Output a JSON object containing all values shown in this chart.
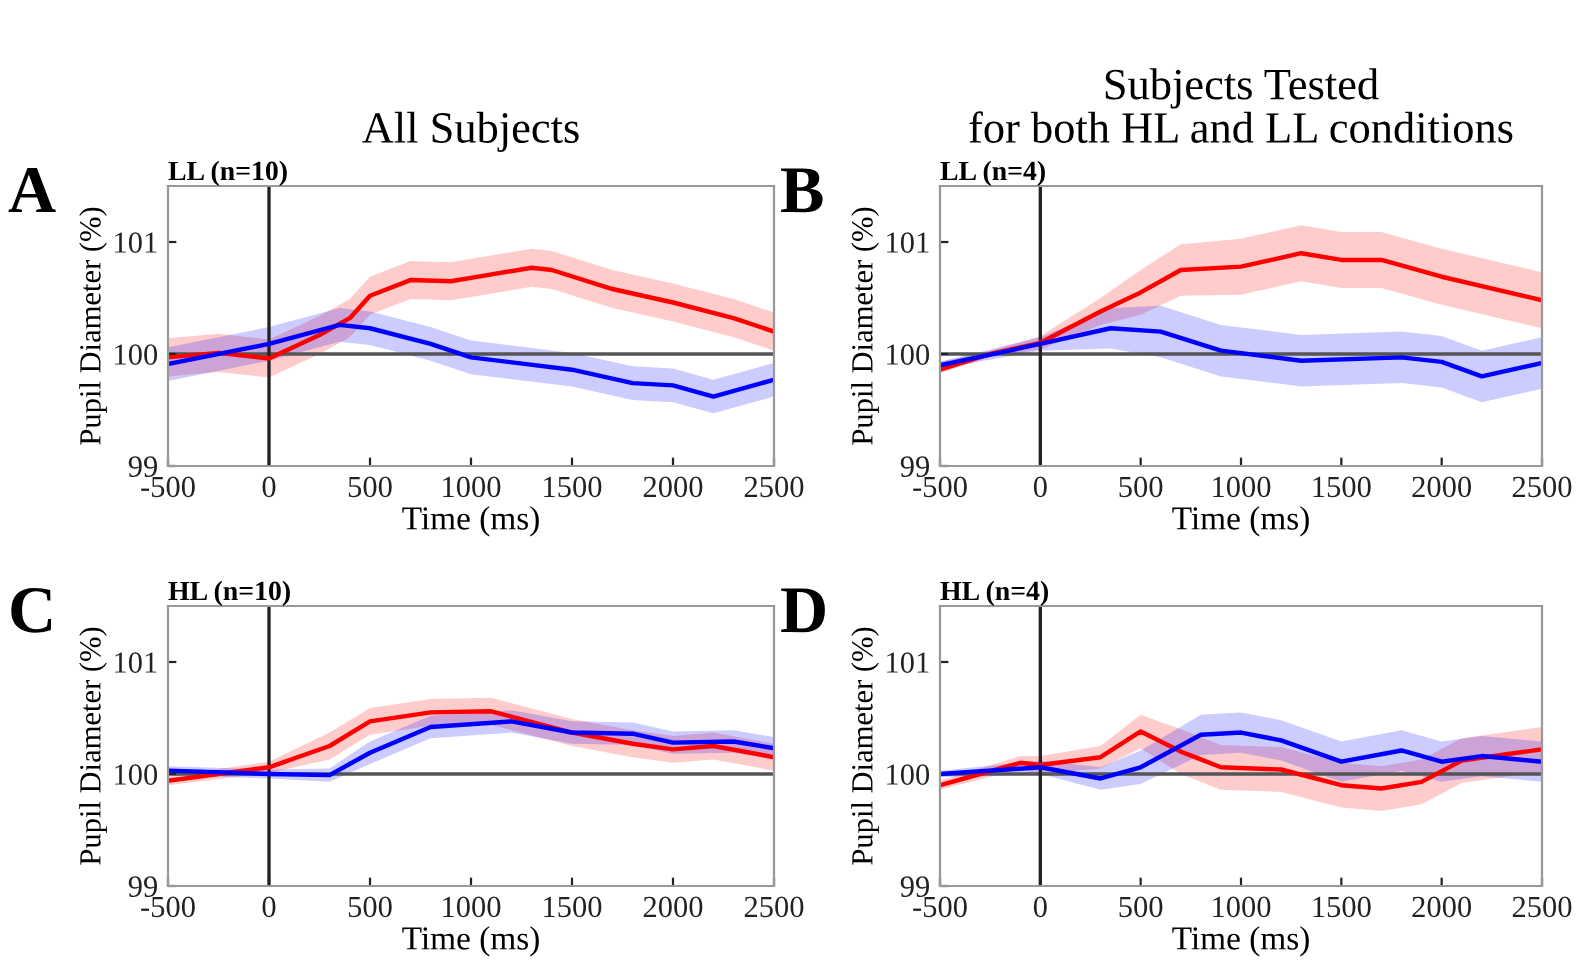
{
  "chart_data": [
    {
      "type": "line",
      "title": "LL (n=10)",
      "subtitle": "All Subjects",
      "annotations": [
        "A"
      ],
      "xlabel": "Time (ms)",
      "ylabel": "Pupil Diameter (%)",
      "xlim": [
        -500,
        2500
      ],
      "ylim": [
        99,
        101.5
      ],
      "xticks": [
        -500,
        0,
        500,
        1000,
        1500,
        2000,
        2500
      ],
      "yticks": [
        99,
        100,
        101
      ],
      "grid": false,
      "line_style": "solid",
      "ref_lines": [
        {
          "axis": "y",
          "value": 100,
          "color": "#555555"
        },
        {
          "axis": "x",
          "value": 0,
          "color": "#222222"
        }
      ],
      "series": [
        {
          "color": "#ff0000",
          "x": [
            -500,
            -250,
            0,
            250,
            400,
            500,
            700,
            900,
            1000,
            1300,
            1400,
            1700,
            2000,
            2300,
            2500
          ],
          "values": [
            99.97,
            100.01,
            99.96,
            100.17,
            100.32,
            100.52,
            100.66,
            100.65,
            100.68,
            100.77,
            100.75,
            100.58,
            100.46,
            100.32,
            100.2
          ],
          "lower": [
            99.8,
            99.84,
            99.79,
            100.0,
            100.15,
            100.35,
            100.49,
            100.48,
            100.51,
            100.6,
            100.58,
            100.41,
            100.29,
            100.15,
            100.03
          ],
          "upper": [
            100.14,
            100.18,
            100.13,
            100.34,
            100.49,
            100.69,
            100.83,
            100.82,
            100.85,
            100.94,
            100.92,
            100.75,
            100.63,
            100.49,
            100.37
          ]
        },
        {
          "color": "#0000ff",
          "x": [
            -500,
            0,
            350,
            500,
            800,
            1000,
            1500,
            1800,
            2000,
            2200,
            2500
          ],
          "values": [
            99.91,
            100.09,
            100.26,
            100.23,
            100.09,
            99.97,
            99.86,
            99.74,
            99.72,
            99.62,
            99.77
          ],
          "lower": [
            99.76,
            99.94,
            100.11,
            100.08,
            99.94,
            99.82,
            99.71,
            99.59,
            99.57,
            99.47,
            99.62
          ],
          "upper": [
            100.06,
            100.24,
            100.41,
            100.38,
            100.24,
            100.12,
            100.01,
            99.89,
            99.87,
            99.77,
            99.92
          ]
        }
      ]
    },
    {
      "type": "line",
      "title": "LL (n=4)",
      "subtitle": "Subjects Tested\nfor both HL and LL conditions",
      "annotations": [
        "B"
      ],
      "xlabel": "Time (ms)",
      "ylabel": "Pupil Diameter (%)",
      "xlim": [
        -500,
        2500
      ],
      "ylim": [
        99,
        101.5
      ],
      "xticks": [
        -500,
        0,
        500,
        1000,
        1500,
        2000,
        2500
      ],
      "yticks": [
        99,
        100,
        101
      ],
      "grid": false,
      "line_style": "solid",
      "ref_lines": [
        {
          "axis": "y",
          "value": 100,
          "color": "#555555"
        },
        {
          "axis": "x",
          "value": 0,
          "color": "#222222"
        }
      ],
      "series": [
        {
          "color": "#ff0000",
          "x": [
            -500,
            -250,
            0,
            300,
            500,
            700,
            1000,
            1300,
            1500,
            1700,
            2000,
            2500
          ],
          "values": [
            99.86,
            100.0,
            100.1,
            100.38,
            100.55,
            100.75,
            100.78,
            100.9,
            100.84,
            100.84,
            100.69,
            100.48
          ],
          "lower": [
            99.83,
            99.97,
            100.04,
            100.26,
            100.35,
            100.52,
            100.53,
            100.65,
            100.59,
            100.59,
            100.44,
            100.23
          ],
          "upper": [
            99.93,
            100.03,
            100.16,
            100.5,
            100.75,
            100.98,
            101.03,
            101.15,
            101.09,
            101.09,
            100.94,
            100.73
          ]
        },
        {
          "color": "#0000ff",
          "x": [
            -500,
            0,
            350,
            600,
            900,
            1300,
            1800,
            2000,
            2200,
            2500
          ],
          "values": [
            99.9,
            100.09,
            100.23,
            100.2,
            100.03,
            99.94,
            99.97,
            99.93,
            99.8,
            99.92
          ],
          "lower": [
            99.87,
            100.03,
            100.05,
            99.97,
            99.8,
            99.71,
            99.74,
            99.7,
            99.57,
            99.69
          ],
          "upper": [
            99.93,
            100.15,
            100.41,
            100.43,
            100.26,
            100.17,
            100.2,
            100.16,
            100.03,
            100.15
          ]
        }
      ]
    },
    {
      "type": "line",
      "title": "HL (n=10)",
      "annotations": [
        "C"
      ],
      "xlabel": "Time (ms)",
      "ylabel": "Pupil Diameter (%)",
      "xlim": [
        -500,
        2500
      ],
      "ylim": [
        99,
        101.5
      ],
      "xticks": [
        -500,
        0,
        500,
        1000,
        1500,
        2000,
        2500
      ],
      "yticks": [
        99,
        100,
        101
      ],
      "grid": false,
      "line_style": "solid",
      "ref_lines": [
        {
          "axis": "y",
          "value": 100,
          "color": "#555555"
        },
        {
          "axis": "x",
          "value": 0,
          "color": "#222222"
        }
      ],
      "series": [
        {
          "color": "#ff0000",
          "x": [
            -500,
            0,
            300,
            500,
            800,
            1100,
            1500,
            1800,
            2000,
            2200,
            2500
          ],
          "values": [
            99.94,
            100.06,
            100.25,
            100.47,
            100.55,
            100.56,
            100.37,
            100.27,
            100.22,
            100.25,
            100.15
          ],
          "lower": [
            99.9,
            100.01,
            100.13,
            100.35,
            100.43,
            100.44,
            100.25,
            100.15,
            100.1,
            100.13,
            100.03
          ],
          "upper": [
            99.98,
            100.11,
            100.37,
            100.59,
            100.67,
            100.68,
            100.49,
            100.39,
            100.34,
            100.37,
            100.27
          ]
        },
        {
          "color": "#0000ff",
          "x": [
            -500,
            0,
            300,
            500,
            800,
            1200,
            1500,
            1800,
            2000,
            2300,
            2500
          ],
          "values": [
            100.03,
            100.0,
            99.99,
            100.19,
            100.42,
            100.47,
            100.37,
            100.36,
            100.28,
            100.29,
            100.23
          ],
          "lower": [
            99.99,
            99.96,
            99.93,
            100.09,
            100.32,
            100.37,
            100.27,
            100.26,
            100.18,
            100.19,
            100.13
          ],
          "upper": [
            100.07,
            100.04,
            100.05,
            100.29,
            100.52,
            100.57,
            100.47,
            100.46,
            100.38,
            100.39,
            100.33
          ]
        }
      ]
    },
    {
      "type": "line",
      "title": "HL (n=4)",
      "annotations": [
        "D"
      ],
      "xlabel": "Time (ms)",
      "ylabel": "Pupil Diameter (%)",
      "xlim": [
        -500,
        2500
      ],
      "ylim": [
        99,
        101.5
      ],
      "xticks": [
        -500,
        0,
        500,
        1000,
        1500,
        2000,
        2500
      ],
      "yticks": [
        99,
        100,
        101
      ],
      "grid": false,
      "line_style": "solid",
      "ref_lines": [
        {
          "axis": "y",
          "value": 100,
          "color": "#555555"
        },
        {
          "axis": "x",
          "value": 0,
          "color": "#222222"
        }
      ],
      "series": [
        {
          "color": "#ff0000",
          "x": [
            -500,
            -300,
            -100,
            0,
            300,
            500,
            700,
            900,
            1200,
            1500,
            1700,
            1900,
            2100,
            2500
          ],
          "values": [
            99.9,
            100.0,
            100.1,
            100.08,
            100.15,
            100.38,
            100.2,
            100.06,
            100.04,
            99.9,
            99.87,
            99.93,
            100.12,
            100.22
          ],
          "lower": [
            99.86,
            99.95,
            100.04,
            100.0,
            100.05,
            100.23,
            100.0,
            99.86,
            99.84,
            99.7,
            99.67,
            99.73,
            99.92,
            100.02
          ],
          "upper": [
            99.94,
            100.05,
            100.16,
            100.16,
            100.25,
            100.53,
            100.4,
            100.26,
            100.24,
            100.1,
            100.07,
            100.13,
            100.32,
            100.42
          ]
        },
        {
          "color": "#0000ff",
          "x": [
            -500,
            0,
            300,
            500,
            800,
            1000,
            1200,
            1500,
            1800,
            2000,
            2200,
            2500
          ],
          "values": [
            100.0,
            100.06,
            99.96,
            100.06,
            100.35,
            100.37,
            100.3,
            100.11,
            100.21,
            100.11,
            100.16,
            100.11
          ],
          "lower": [
            99.97,
            100.0,
            99.86,
            99.91,
            100.17,
            100.19,
            100.12,
            99.93,
            100.03,
            99.93,
            99.98,
            99.93
          ],
          "upper": [
            100.03,
            100.12,
            100.06,
            100.21,
            100.53,
            100.55,
            100.48,
            100.29,
            100.39,
            100.29,
            100.34,
            100.29
          ]
        }
      ]
    }
  ]
}
